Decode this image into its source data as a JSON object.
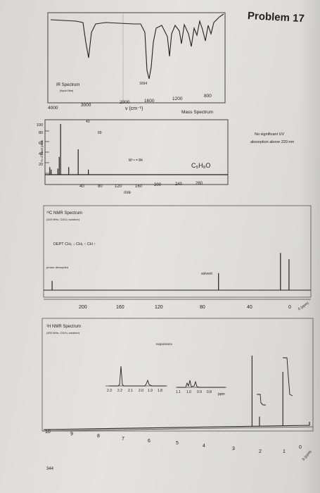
{
  "header": {
    "problem_title": "Problem 17"
  },
  "ir": {
    "title": "IR Spectrum",
    "subtitle": "(liquid film)",
    "peak_label": "1694",
    "x_ticks": [
      "4000",
      "3000",
      "2000",
      "1600",
      "1200",
      "800"
    ],
    "xlabel": "ν (cm⁻¹)"
  },
  "mass": {
    "title": "Mass Spectrum",
    "ylabel": "% of base peak",
    "y_ticks": [
      "100",
      "80",
      "60",
      "40",
      "20"
    ],
    "x_ticks": [
      "40",
      "80",
      "120",
      "160",
      "200",
      "240",
      "280"
    ],
    "xlabel": "m/e",
    "peak_43": "43",
    "peak_69": "69",
    "molecular_ion": "M⁺• = 84",
    "formula": "C₅H₈O"
  },
  "uv": {
    "note_line1": "No significant UV",
    "note_line2": "absorption above 220 nm"
  },
  "c13": {
    "title": "¹³C NMR Spectrum",
    "subtitle": "(100 MHz, CDCl₃ solution)",
    "dept": "DEPT  CH₂ ↓ CH₂ ↑ CH ↑",
    "proton_decoupled": "proton decoupled",
    "solvent": "solvent",
    "x_ticks": [
      "200",
      "160",
      "120",
      "80",
      "40",
      "0"
    ],
    "end_label": "δ (ppm)"
  },
  "h1": {
    "title": "¹H NMR Spectrum",
    "subtitle": "(400 MHz, CDCl₃ solution)",
    "expansions": "expansions",
    "inset1_ticks": [
      "2.3",
      "2.2",
      "2.1",
      "2.0",
      "1.9",
      "1.8"
    ],
    "inset2_ticks": [
      "1.1",
      "1.0",
      "0.9",
      "0.8",
      "ppm"
    ],
    "x_ticks": [
      "10",
      "9",
      "8",
      "7",
      "6",
      "5",
      "4",
      "3",
      "2",
      "1",
      "0"
    ],
    "end_label": "δ (ppm)"
  },
  "footer": {
    "page_number": "344"
  },
  "chart_data": [
    {
      "type": "line",
      "title": "IR Spectrum",
      "xlabel": "ν (cm⁻¹)",
      "x": [
        4000,
        3500,
        3000,
        2960,
        2875,
        2500,
        2000,
        1720,
        1694,
        1650,
        1460,
        1370,
        1250,
        1150,
        1050,
        950,
        850,
        750,
        600
      ],
      "values": [
        96,
        95,
        92,
        60,
        70,
        95,
        94,
        88,
        5,
        80,
        40,
        45,
        65,
        55,
        70,
        60,
        75,
        72,
        85
      ],
      "xlim": [
        4000,
        600
      ]
    },
    {
      "type": "bar",
      "title": "Mass Spectrum",
      "xlabel": "m/e",
      "ylabel": "% of base peak",
      "x": [
        27,
        29,
        39,
        41,
        43,
        55,
        69,
        84
      ],
      "values": [
        15,
        10,
        12,
        35,
        100,
        15,
        50,
        10
      ],
      "xlim": [
        20,
        290
      ],
      "ylim": [
        0,
        100
      ]
    },
    {
      "type": "bar",
      "title": "¹³C NMR Spectrum",
      "x": [
        213,
        76,
        25,
        18
      ],
      "values": [
        12,
        22,
        48,
        40
      ],
      "xlim": [
        220,
        0
      ]
    },
    {
      "type": "bar",
      "title": "¹H NMR Spectrum",
      "x": [
        2.16,
        1.88,
        1.0,
        0.0
      ],
      "values": [
        72,
        10,
        55,
        4
      ],
      "xlim": [
        10,
        0
      ]
    }
  ]
}
